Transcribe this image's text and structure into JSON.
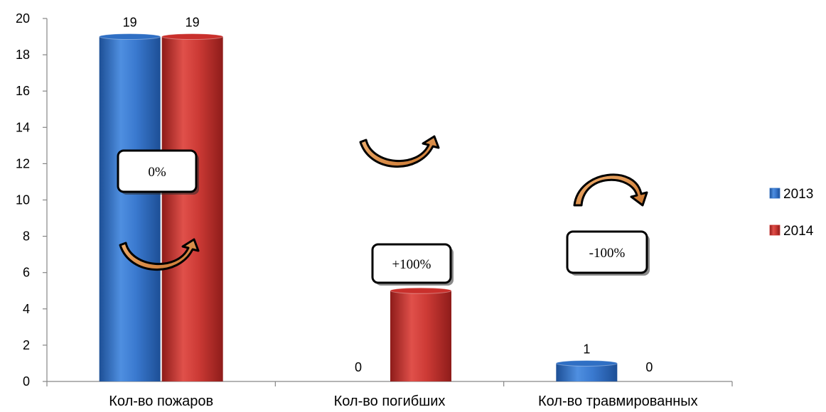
{
  "chart_data": {
    "type": "bar",
    "categories": [
      "Кол-во пожаров",
      "Кол-во погибших",
      "Кол-во травмированных"
    ],
    "series": [
      {
        "name": "2013",
        "values": [
          19,
          0,
          1
        ],
        "color": "#2f6fc4"
      },
      {
        "name": "2014",
        "values": [
          19,
          5,
          0
        ],
        "color": "#c9302c"
      }
    ],
    "ylim": [
      0,
      20
    ],
    "yticks": [
      0,
      2,
      4,
      6,
      8,
      10,
      12,
      14,
      16,
      18,
      20
    ],
    "data_labels": true,
    "legend_position": "right",
    "grid": false,
    "annotations": [
      {
        "category": "Кол-во пожаров",
        "text": "0%",
        "arrow": "up-curve"
      },
      {
        "category": "Кол-во погибших",
        "text": "+100%",
        "arrow": "up-curve"
      },
      {
        "category": "Кол-во травмированных",
        "text": "-100%",
        "arrow": "down-curve"
      }
    ]
  }
}
